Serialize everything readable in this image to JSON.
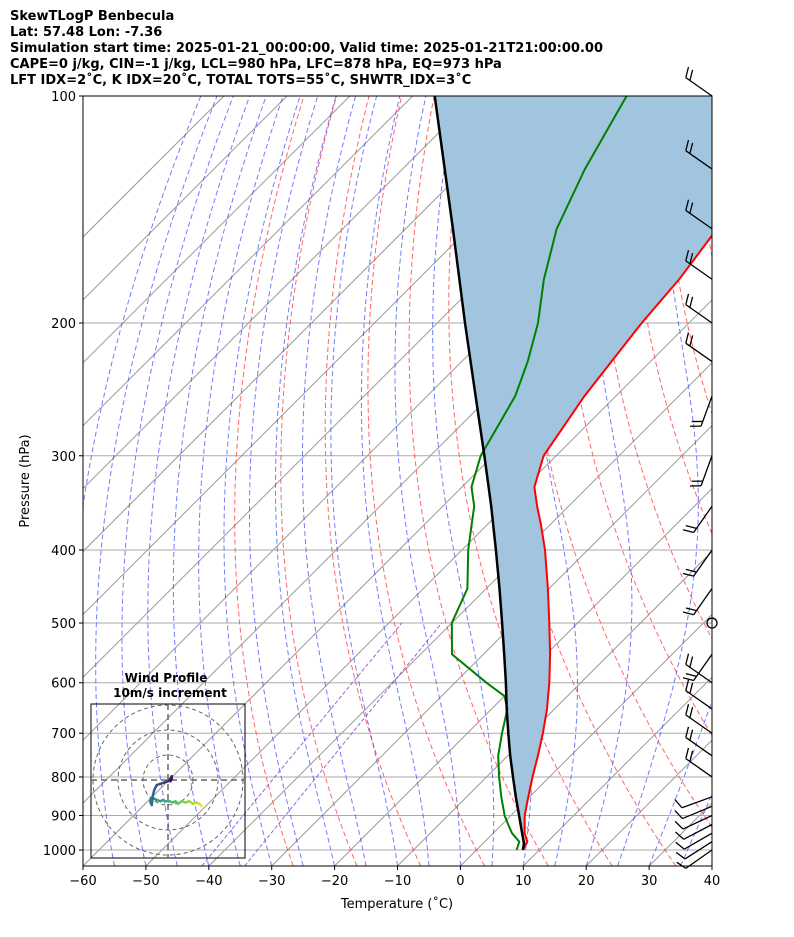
{
  "header": {
    "line1": "SkewTLogP Benbecula",
    "line2": "Lat: 57.48   Lon: -7.36",
    "line3": "Simulation start time: 2025-01-21_00:00:00, Valid time: 2025-01-21T21:00:00.00",
    "line4": "CAPE=0 j/kg, CIN=-1 j/kg, LCL=980 hPa, LFC=878 hPa, EQ=973 hPa",
    "line5": "LFT IDX=2˚C, K IDX=20˚C, TOTAL TOTS=55˚C, SHWTR_IDX=3˚C"
  },
  "colors": {
    "temperature": "#ff0000",
    "dewpoint": "#008000",
    "parcel": "#000000",
    "cape_fill": "#a1c5df",
    "dry_adiabat": "#ff4040",
    "moist_adiabat": "#3344ff",
    "mixing_ratio": "#8a3ccc",
    "isotherm": "#999999",
    "isobar": "#aaaaaa",
    "hodograph_grid": "#666666"
  },
  "chart_data": [
    {
      "type": "line",
      "subtype": "skew-t",
      "title": "",
      "xlabel": "Temperature (˚C)",
      "ylabel": "Pressure (hPa)",
      "xlim": [
        -60,
        40
      ],
      "ylim": [
        1050,
        100
      ],
      "y_scale": "log",
      "x_ticks": [
        "−60",
        "−50",
        "−40",
        "−30",
        "−20",
        "−10",
        "0",
        "10",
        "20",
        "30",
        "40"
      ],
      "x_tick_values": [
        -60,
        -50,
        -40,
        -30,
        -20,
        -10,
        0,
        10,
        20,
        30,
        40
      ],
      "y_ticks": [
        "100",
        "200",
        "300",
        "400",
        "500",
        "600",
        "700",
        "800",
        "900",
        "1000"
      ],
      "y_tick_values": [
        100,
        200,
        300,
        400,
        500,
        600,
        700,
        800,
        900,
        1000
      ],
      "grid": true,
      "series": [
        {
          "key": "temperature",
          "p": [
            1000,
            975,
            950,
            925,
            900,
            850,
            800,
            750,
            700,
            650,
            600,
            550,
            500,
            450,
            400,
            370,
            350,
            330,
            300,
            250,
            200,
            175,
            150,
            125,
            100
          ],
          "t": [
            7.4,
            6.8,
            5.0,
            3.6,
            2.2,
            -0.2,
            -2.7,
            -5.2,
            -8.0,
            -11.2,
            -15.0,
            -19.4,
            -24.5,
            -30.2,
            -36.8,
            -41.5,
            -45.0,
            -48.5,
            -52.0,
            -55.0,
            -57.5,
            -58.5,
            -60.5,
            -61.5,
            -63.5
          ]
        },
        {
          "key": "dewpoint",
          "p": [
            1000,
            975,
            950,
            925,
            900,
            850,
            800,
            750,
            700,
            650,
            625,
            600,
            550,
            500,
            450,
            400,
            370,
            350,
            330,
            300,
            250,
            225,
            200,
            175,
            150,
            125,
            100
          ],
          "t": [
            6.4,
            5.5,
            3.0,
            1.0,
            -1.0,
            -4.5,
            -8.0,
            -11.5,
            -14.5,
            -17.5,
            -20.0,
            -25.0,
            -35.0,
            -40.0,
            -43.0,
            -49.0,
            -52.5,
            -55.0,
            -58.5,
            -62.0,
            -66.0,
            -69.5,
            -74.0,
            -80.0,
            -86.0,
            -91.0,
            -96.0
          ]
        },
        {
          "key": "parcel",
          "p": [
            1000,
            980,
            950,
            900,
            850,
            800,
            750,
            700,
            650,
            600,
            550,
            500,
            450,
            400,
            350,
            300,
            250,
            200,
            150,
            100
          ],
          "t": [
            7.4,
            6.5,
            4.6,
            1.3,
            -2.2,
            -5.8,
            -9.6,
            -13.5,
            -17.6,
            -21.9,
            -26.7,
            -32.0,
            -37.9,
            -44.6,
            -52.3,
            -61.4,
            -72.3,
            -85.6,
            -102.5,
            -126.5
          ]
        }
      ],
      "shaded_region": "CAPE/CIN area between temperature and parcel profiles",
      "wind_barbs": {
        "p": [
          1000,
          975,
          950,
          925,
          900,
          875,
          850,
          800,
          750,
          700,
          650,
          600,
          550,
          500,
          450,
          400,
          350,
          300,
          250,
          225,
          200,
          175,
          150,
          125,
          100
        ]
      }
    },
    {
      "type": "line",
      "subtype": "hodograph",
      "title": "Wind Profile",
      "subtitle": "10m/s increment",
      "ring_increment": 10,
      "rings": 3,
      "points_u": [
        13.5,
        13.0,
        12.5,
        11.5,
        10.0,
        8.5,
        7.0,
        5.5,
        4.0,
        3.0,
        2.0,
        0.5,
        -1.0,
        -2.0,
        -3.0,
        -4.5,
        -5.5,
        -6.5,
        -7.0,
        -7.0,
        -6.5,
        -6.0,
        -5.5,
        -5.0,
        -4.5,
        -3.0,
        -1.5,
        0.0,
        1.0,
        1.5,
        1.5,
        1.0
      ],
      "points_v": [
        -10.5,
        -10.0,
        -9.5,
        -9.0,
        -9.5,
        -8.5,
        -9.0,
        -8.5,
        -9.5,
        -8.5,
        -9.0,
        -8.5,
        -8.5,
        -8.0,
        -8.5,
        -8.0,
        -7.5,
        -7.0,
        -8.0,
        -9.0,
        -10.0,
        -6.0,
        -4.0,
        -3.0,
        -2.0,
        -1.5,
        -1.0,
        -0.5,
        0.5,
        1.5,
        0.5,
        -0.5
      ]
    }
  ]
}
